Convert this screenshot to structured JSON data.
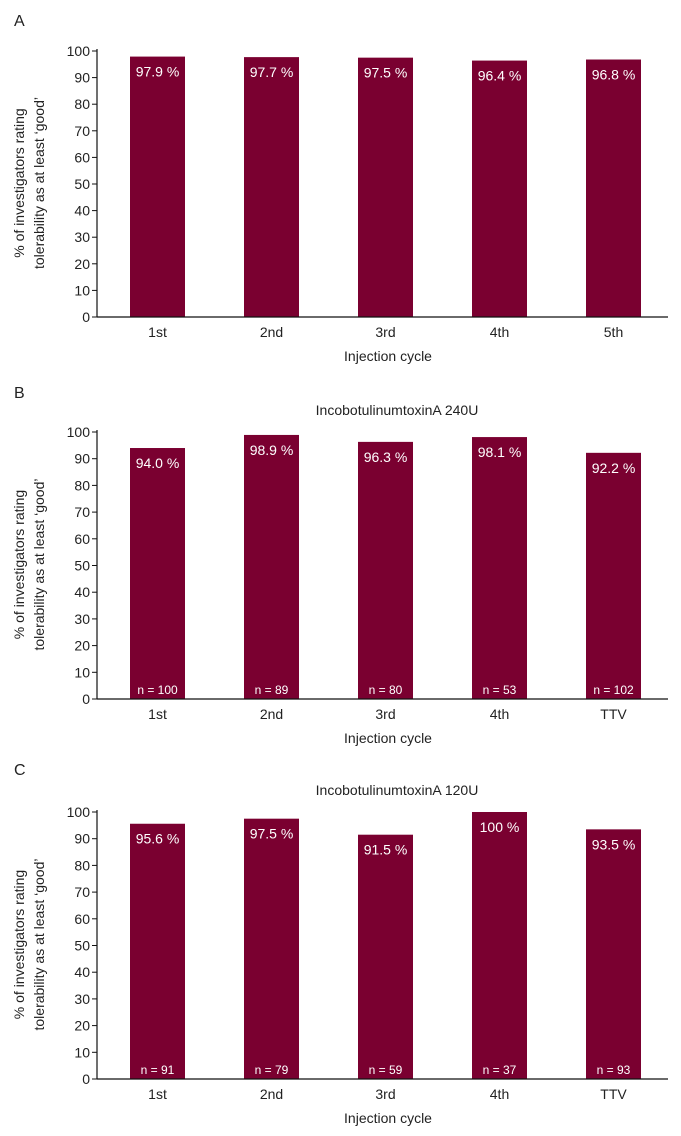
{
  "colors": {
    "bar": "#7a0030",
    "axis": "#111111",
    "text": "#222222",
    "bar_label": "#ffffff"
  },
  "chart_data": [
    {
      "panel_label": "A",
      "type": "bar",
      "title": "",
      "categories": [
        "1st",
        "2nd",
        "3rd",
        "4th",
        "5th"
      ],
      "values": [
        97.9,
        97.7,
        97.5,
        96.4,
        96.8
      ],
      "value_labels": [
        "97.9 %",
        "97.7 %",
        "97.5 %",
        "96.4 %",
        "96.8 %"
      ],
      "n_labels": [],
      "xlabel": "Injection cycle",
      "ylabel_lines": [
        "% of investigators rating",
        "tolerability as at least ‘good’"
      ],
      "ylim": [
        0,
        100
      ],
      "yticks": [
        0,
        10,
        20,
        30,
        40,
        50,
        60,
        70,
        80,
        90,
        100
      ],
      "grid": false
    },
    {
      "panel_label": "B",
      "type": "bar",
      "title": "IncobotulinumtoxinA 240U",
      "categories": [
        "1st",
        "2nd",
        "3rd",
        "4th",
        "TTV"
      ],
      "values": [
        94.0,
        98.9,
        96.3,
        98.1,
        92.2
      ],
      "value_labels": [
        "94.0 %",
        "98.9 %",
        "96.3 %",
        "98.1 %",
        "92.2 %"
      ],
      "n_labels": [
        "n = 100",
        "n = 89",
        "n = 80",
        "n = 53",
        "n = 102"
      ],
      "xlabel": "Injection cycle",
      "ylabel_lines": [
        "% of investigators rating",
        "tolerability as at least ‘good’"
      ],
      "ylim": [
        0,
        100
      ],
      "yticks": [
        0,
        10,
        20,
        30,
        40,
        50,
        60,
        70,
        80,
        90,
        100
      ],
      "grid": false
    },
    {
      "panel_label": "C",
      "type": "bar",
      "title": "IncobotulinumtoxinA 120U",
      "categories": [
        "1st",
        "2nd",
        "3rd",
        "4th",
        "TTV"
      ],
      "values": [
        95.6,
        97.5,
        91.5,
        100,
        93.5
      ],
      "value_labels": [
        "95.6 %",
        "97.5 %",
        "91.5 %",
        "100 %",
        "93.5 %"
      ],
      "n_labels": [
        "n = 91",
        "n = 79",
        "n = 59",
        "n = 37",
        "n = 93"
      ],
      "xlabel": "Injection cycle",
      "ylabel_lines": [
        "% of investigators rating",
        "tolerability as at least ‘good’"
      ],
      "ylim": [
        0,
        100
      ],
      "yticks": [
        0,
        10,
        20,
        30,
        40,
        50,
        60,
        70,
        80,
        90,
        100
      ],
      "grid": false
    }
  ]
}
